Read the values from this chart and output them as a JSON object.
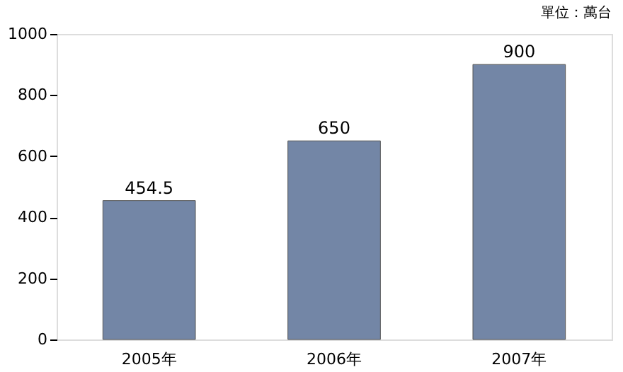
{
  "chart_data": {
    "type": "bar",
    "annotations": [
      "單位：萬台"
    ],
    "categories": [
      "2005年",
      "2006年",
      "2007年"
    ],
    "values": [
      454.5,
      650,
      900
    ],
    "color": "#7386a6",
    "ylim": [
      0,
      1000
    ],
    "yticks": [
      0,
      200,
      400,
      600,
      800,
      1000
    ],
    "data_labels": true,
    "grid": false
  }
}
